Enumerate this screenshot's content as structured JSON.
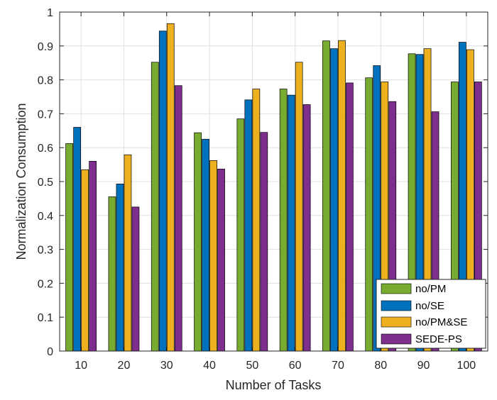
{
  "chart_data": {
    "type": "bar",
    "title": "",
    "xlabel": "Number of Tasks",
    "ylabel": "Normalization Consumption",
    "ylim": [
      0,
      1
    ],
    "yticks": [
      "0",
      "0.1",
      "0.2",
      "0.3",
      "0.4",
      "0.5",
      "0.6",
      "0.7",
      "0.8",
      "0.9",
      "1"
    ],
    "categories": [
      "10",
      "20",
      "30",
      "40",
      "50",
      "60",
      "70",
      "80",
      "90",
      "100"
    ],
    "grid": true,
    "legend_position": "bottom-right",
    "series": [
      {
        "name": "no/PM",
        "color": "#77ac30",
        "values": [
          0.612,
          0.455,
          0.852,
          0.644,
          0.685,
          0.773,
          0.915,
          0.806,
          0.877,
          0.794
        ]
      },
      {
        "name": "no/SE",
        "color": "#0072bd",
        "values": [
          0.66,
          0.493,
          0.944,
          0.625,
          0.741,
          0.755,
          0.892,
          0.842,
          0.875,
          0.911
        ]
      },
      {
        "name": "no/PM&SE",
        "color": "#edb120",
        "values": [
          0.535,
          0.579,
          0.966,
          0.562,
          0.773,
          0.852,
          0.916,
          0.794,
          0.892,
          0.889
        ]
      },
      {
        "name": "SEDE-PS",
        "color": "#7e2f8e",
        "values": [
          0.56,
          0.425,
          0.783,
          0.537,
          0.645,
          0.727,
          0.791,
          0.736,
          0.706,
          0.794
        ]
      }
    ]
  }
}
